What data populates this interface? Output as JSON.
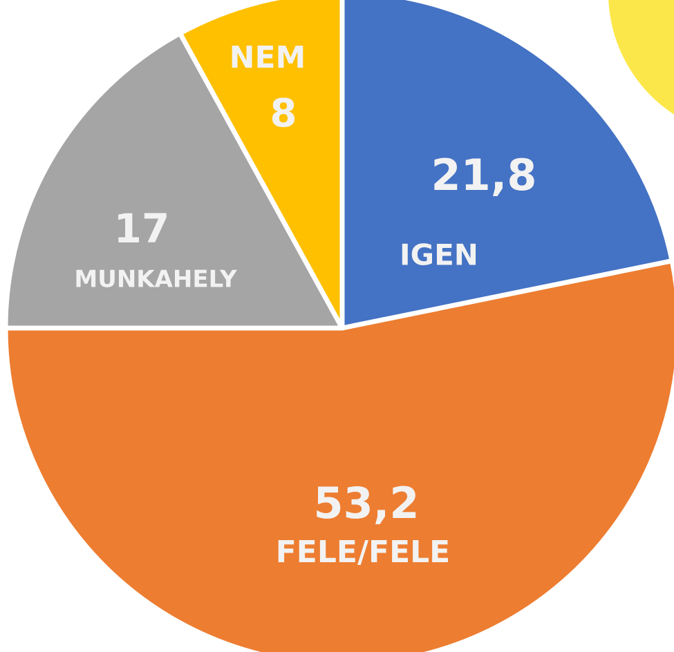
{
  "chart_data": {
    "type": "pie",
    "categories": [
      "IGEN",
      "FELE/FELE",
      "MUNKAHELY",
      "NEM"
    ],
    "values": [
      21.8,
      53.2,
      17,
      8
    ],
    "value_labels": [
      "21,8",
      "53,2",
      "17",
      "8"
    ],
    "colors": [
      "#4472c4",
      "#ed7d31",
      "#a5a5a5",
      "#ffc000"
    ]
  }
}
